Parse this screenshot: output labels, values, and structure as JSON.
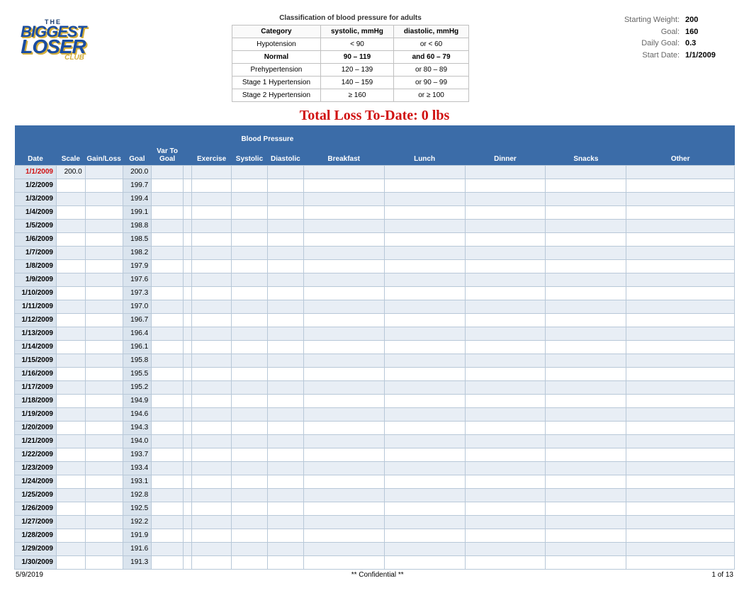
{
  "logo": {
    "the": "THE",
    "biggest": "BIGGEST",
    "loser": "LOSER",
    "club": "CLUB"
  },
  "bp_classification": {
    "title": "Classification of blood pressure for adults",
    "headers": [
      "Category",
      "systolic, mmHg",
      "diastolic, mmHg"
    ],
    "rows": [
      {
        "cat": "Hypotension",
        "sys": "< 90",
        "dia": "or < 60",
        "bold": false
      },
      {
        "cat": "Normal",
        "sys": "90 – 119",
        "dia": "and 60 – 79",
        "bold": true
      },
      {
        "cat": "Prehypertension",
        "sys": "120 – 139",
        "dia": "or 80 – 89",
        "bold": false
      },
      {
        "cat": "Stage 1 Hypertension",
        "sys": "140 – 159",
        "dia": "or 90 – 99",
        "bold": false
      },
      {
        "cat": "Stage 2 Hypertension",
        "sys": "≥ 160",
        "dia": "or ≥ 100",
        "bold": false
      }
    ]
  },
  "stats": {
    "starting_weight": {
      "label": "Starting Weight:",
      "value": "200"
    },
    "goal": {
      "label": "Goal:",
      "value": "160"
    },
    "daily_goal": {
      "label": "Daily Goal:",
      "value": "0.3"
    },
    "start_date": {
      "label": "Start Date:",
      "value": "1/1/2009"
    }
  },
  "total_title": "Total Loss To-Date: 0 lbs",
  "main_headers": {
    "date": "Date",
    "scale": "Scale",
    "gainloss": "Gain/Loss",
    "goal": "Goal",
    "vartogoal": "Var To Goal",
    "exercise": "Exercise",
    "bp": "Blood Pressure",
    "systolic": "Systolic",
    "diastolic": "Diastolic",
    "breakfast": "Breakfast",
    "lunch": "Lunch",
    "dinner": "Dinner",
    "snacks": "Snacks",
    "other": "Other"
  },
  "rows": [
    {
      "date": "1/1/2009",
      "scale": "200.0",
      "gainloss": "",
      "goal": "200.0",
      "first": true
    },
    {
      "date": "1/2/2009",
      "scale": "",
      "gainloss": "",
      "goal": "199.7"
    },
    {
      "date": "1/3/2009",
      "scale": "",
      "gainloss": "",
      "goal": "199.4"
    },
    {
      "date": "1/4/2009",
      "scale": "",
      "gainloss": "",
      "goal": "199.1"
    },
    {
      "date": "1/5/2009",
      "scale": "",
      "gainloss": "",
      "goal": "198.8"
    },
    {
      "date": "1/6/2009",
      "scale": "",
      "gainloss": "",
      "goal": "198.5"
    },
    {
      "date": "1/7/2009",
      "scale": "",
      "gainloss": "",
      "goal": "198.2"
    },
    {
      "date": "1/8/2009",
      "scale": "",
      "gainloss": "",
      "goal": "197.9"
    },
    {
      "date": "1/9/2009",
      "scale": "",
      "gainloss": "",
      "goal": "197.6"
    },
    {
      "date": "1/10/2009",
      "scale": "",
      "gainloss": "",
      "goal": "197.3"
    },
    {
      "date": "1/11/2009",
      "scale": "",
      "gainloss": "",
      "goal": "197.0"
    },
    {
      "date": "1/12/2009",
      "scale": "",
      "gainloss": "",
      "goal": "196.7"
    },
    {
      "date": "1/13/2009",
      "scale": "",
      "gainloss": "",
      "goal": "196.4"
    },
    {
      "date": "1/14/2009",
      "scale": "",
      "gainloss": "",
      "goal": "196.1"
    },
    {
      "date": "1/15/2009",
      "scale": "",
      "gainloss": "",
      "goal": "195.8"
    },
    {
      "date": "1/16/2009",
      "scale": "",
      "gainloss": "",
      "goal": "195.5"
    },
    {
      "date": "1/17/2009",
      "scale": "",
      "gainloss": "",
      "goal": "195.2"
    },
    {
      "date": "1/18/2009",
      "scale": "",
      "gainloss": "",
      "goal": "194.9"
    },
    {
      "date": "1/19/2009",
      "scale": "",
      "gainloss": "",
      "goal": "194.6"
    },
    {
      "date": "1/20/2009",
      "scale": "",
      "gainloss": "",
      "goal": "194.3"
    },
    {
      "date": "1/21/2009",
      "scale": "",
      "gainloss": "",
      "goal": "194.0"
    },
    {
      "date": "1/22/2009",
      "scale": "",
      "gainloss": "",
      "goal": "193.7"
    },
    {
      "date": "1/23/2009",
      "scale": "",
      "gainloss": "",
      "goal": "193.4"
    },
    {
      "date": "1/24/2009",
      "scale": "",
      "gainloss": "",
      "goal": "193.1"
    },
    {
      "date": "1/25/2009",
      "scale": "",
      "gainloss": "",
      "goal": "192.8"
    },
    {
      "date": "1/26/2009",
      "scale": "",
      "gainloss": "",
      "goal": "192.5"
    },
    {
      "date": "1/27/2009",
      "scale": "",
      "gainloss": "",
      "goal": "192.2"
    },
    {
      "date": "1/28/2009",
      "scale": "",
      "gainloss": "",
      "goal": "191.9"
    },
    {
      "date": "1/29/2009",
      "scale": "",
      "gainloss": "",
      "goal": "191.6"
    },
    {
      "date": "1/30/2009",
      "scale": "",
      "gainloss": "",
      "goal": "191.3"
    }
  ],
  "footer": {
    "date": "5/9/2019",
    "conf": "** Confidential **",
    "page": "1 of 13"
  },
  "colors": {
    "header_bg": "#3b6ca8",
    "header_fg": "#ffffff",
    "shaded_cell": "#dae4ee",
    "alt_row": "#e8eef5",
    "border": "#b8c8d8",
    "title_red": "#d01010"
  }
}
